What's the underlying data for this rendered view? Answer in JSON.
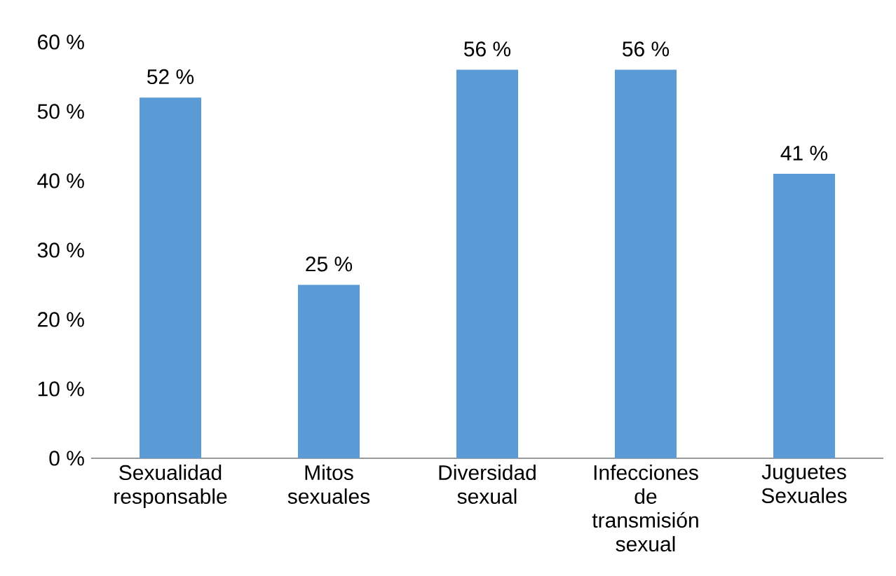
{
  "chart_data": {
    "type": "bar",
    "categories": [
      "Sexualidad responsable",
      "Mitos sexuales",
      "Diversidad sexual",
      "Infecciones de transmisión sexual",
      "Juguetes Sexuales"
    ],
    "values": [
      52,
      25,
      56,
      56,
      41
    ],
    "value_labels": [
      "52 %",
      "25 %",
      "56 %",
      "56 %",
      "41 %"
    ],
    "color": "#5b9bd5",
    "ylim": [
      0,
      60
    ],
    "yticks": [
      {
        "value": 0,
        "label": "0 %"
      },
      {
        "value": 10,
        "label": "10 %"
      },
      {
        "value": 20,
        "label": "20 %"
      },
      {
        "value": 30,
        "label": "30 %"
      },
      {
        "value": 40,
        "label": "40 %"
      },
      {
        "value": 50,
        "label": "50 %"
      },
      {
        "value": 60,
        "label": "60 %"
      }
    ],
    "grid": false
  }
}
